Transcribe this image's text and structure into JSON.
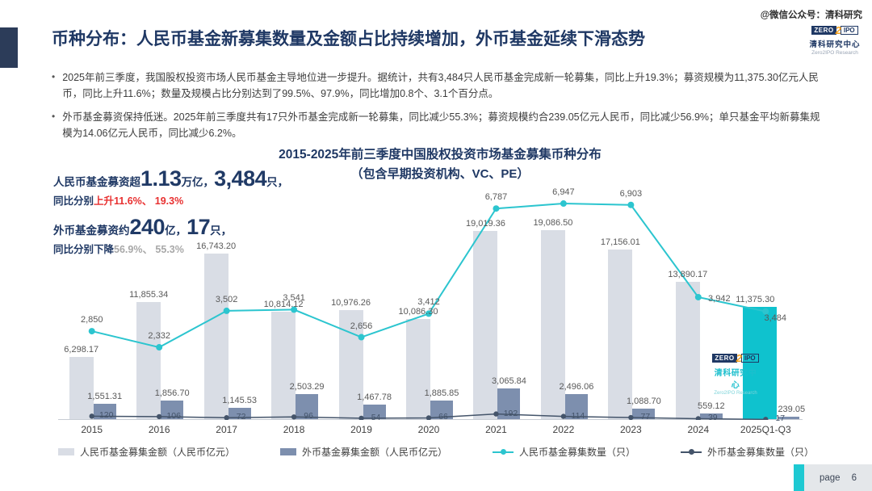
{
  "header": {
    "watermark": "@微信公众号：清科研究",
    "title": "币种分布：人民币基金新募集数量及金额占比持续增加，外币基金延续下滑态势"
  },
  "brand": {
    "zero": "ZERO",
    "two": "2",
    "ipo": "IPO",
    "org": "清科研究中心",
    "sub": "Zero2IPO Research"
  },
  "bullets": [
    "2025年前三季度，我国股权投资市场人民币基金主导地位进一步提升。据统计，共有3,484只人民币基金完成新一轮募集，同比上升19.3%；募资规模为11,375.30亿元人民币，同比上升11.6%；数量及规模占比分别达到了99.5%、97.9%，同比增加0.8个、3.1个百分点。",
    "外币基金募资保持低迷。2025年前三季度共有17只外币基金完成新一轮募集，同比减少55.3%；募资规模约合239.05亿元人民币，同比减少56.9%；单只基金平均新募集规模为14.06亿元人民币，同比减少6.2%。"
  ],
  "summary": {
    "rmb": {
      "prefix": "人民币基金募资超",
      "value": "1.13",
      "value_unit": "万亿，",
      "count": "3,484",
      "count_unit": "只，",
      "yoy_prefix": "同比分别",
      "yoy": "上升11.6%、 19.3%"
    },
    "foreign": {
      "prefix": "外币基金募资约",
      "value": "240",
      "value_unit": "亿，",
      "count": "17",
      "count_unit": "只，",
      "yoy_prefix": "同比分别下降",
      "yoy": "56.9%、 55.3%"
    }
  },
  "chart_data": {
    "type": "combo-bar-line",
    "title": "2015-2025年前三季度中国股权投资市场基金募集币种分布",
    "subtitle": "（包含早期投资机构、VC、PE）",
    "categories": [
      "2015",
      "2016",
      "2017",
      "2018",
      "2019",
      "2020",
      "2021",
      "2022",
      "2023",
      "2024",
      "2025Q1-Q3"
    ],
    "series": [
      {
        "name": "人民币基金募集金额（人民币亿元）",
        "type": "bar",
        "color": "#d9dde5",
        "values": [
          6298.17,
          11855.34,
          16743.2,
          10814.12,
          10976.26,
          10086.3,
          19019.36,
          19086.5,
          17156.01,
          13890.17,
          11375.3
        ],
        "labels": [
          "6,298.17",
          "11,855.34",
          "16,743.20",
          "10,814.12",
          "10,976.26",
          "10,086.30",
          "19,019.36",
          "19,086.50",
          "17,156.01",
          "13,890.17",
          "11,375.30"
        ]
      },
      {
        "name": "外币基金募集金额（人民币亿元）",
        "type": "bar",
        "color": "#7d8fae",
        "values": [
          1551.31,
          1856.7,
          1145.53,
          2503.29,
          1467.78,
          1885.85,
          3065.84,
          2496.06,
          1088.7,
          559.12,
          239.05
        ],
        "labels": [
          "1,551.31",
          "1,856.70",
          "1,145.53",
          "2,503.29",
          "1,467.78",
          "1,885.85",
          "3,065.84",
          "2,496.06",
          "1,088.70",
          "559.12",
          "239.05"
        ]
      },
      {
        "name": "人民币基金募集数量（只）",
        "type": "line",
        "color": "#2cc5cf",
        "values": [
          2850,
          2332,
          3502,
          3541,
          2656,
          3412,
          6787,
          6947,
          6903,
          3942,
          3484
        ],
        "labels": [
          "2,850",
          "2,332",
          "3,502",
          "3,541",
          "2,656",
          "3,412",
          "6,787",
          "6,947",
          "6,903",
          "3,942",
          "3,484"
        ]
      },
      {
        "name": "外币基金募集数量（只）",
        "type": "line",
        "color": "#44546a",
        "values": [
          120,
          106,
          72,
          96,
          54,
          66,
          192,
          114,
          77,
          39,
          17
        ],
        "labels": [
          "120",
          "106",
          "72",
          "96",
          "54",
          "66",
          "192",
          "114",
          "77",
          "39",
          "17"
        ]
      }
    ],
    "highlight": {
      "category": "2025Q1-Q3",
      "bar_color": "#0fc2ce"
    },
    "amount_axis_max": 19086.5,
    "count_axis_max": 7000,
    "grid": false,
    "legend_position": "bottom"
  },
  "footer": {
    "page_label": "page",
    "page_number": "6"
  }
}
